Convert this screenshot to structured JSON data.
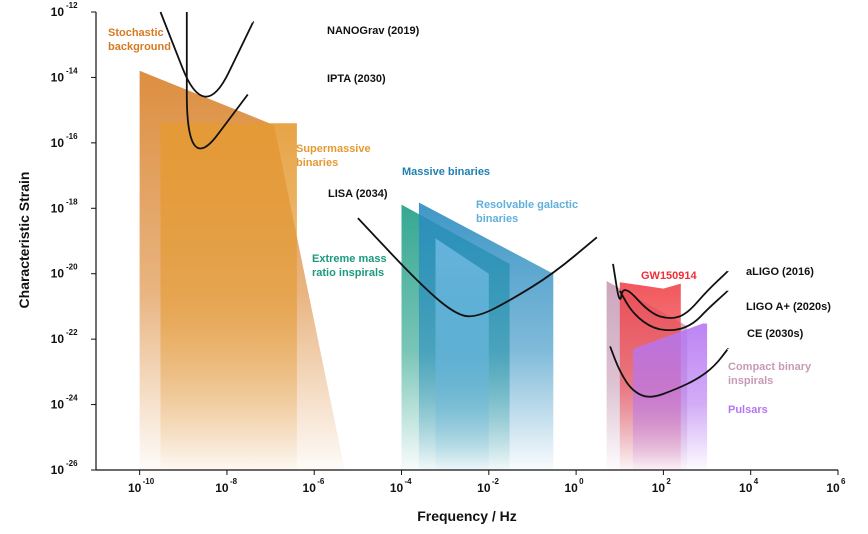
{
  "chart_data": {
    "type": "area",
    "title": "",
    "xlabel": "Frequency / Hz",
    "ylabel": "Characteristic Strain",
    "x_scale": "log",
    "y_scale": "log",
    "xlim": [
      1e-11,
      1000000.0
    ],
    "ylim": [
      1e-26,
      1e-12
    ],
    "grid": false,
    "legend": "none",
    "x_ticks": [
      {
        "base": "10",
        "exp": "-10",
        "value": 1e-10
      },
      {
        "base": "10",
        "exp": "-8",
        "value": 1e-08
      },
      {
        "base": "10",
        "exp": "-6",
        "value": 1e-06
      },
      {
        "base": "10",
        "exp": "-4",
        "value": 0.0001
      },
      {
        "base": "10",
        "exp": "-2",
        "value": 0.01
      },
      {
        "base": "10",
        "exp": "0",
        "value": 1
      },
      {
        "base": "10",
        "exp": "2",
        "value": 100
      },
      {
        "base": "10",
        "exp": "4",
        "value": 10000.0
      },
      {
        "base": "10",
        "exp": "6",
        "value": 1000000.0
      }
    ],
    "y_ticks": [
      {
        "base": "10",
        "exp": "-12",
        "value": 1e-12
      },
      {
        "base": "10",
        "exp": "-14",
        "value": 1e-14
      },
      {
        "base": "10",
        "exp": "-16",
        "value": 1e-16
      },
      {
        "base": "10",
        "exp": "-18",
        "value": 1e-18
      },
      {
        "base": "10",
        "exp": "-20",
        "value": 1e-20
      },
      {
        "base": "10",
        "exp": "-22",
        "value": 1e-22
      },
      {
        "base": "10",
        "exp": "-24",
        "value": 1e-24
      },
      {
        "base": "10",
        "exp": "-26",
        "value": 1e-26
      }
    ],
    "source_regions": [
      {
        "key": "stochastic",
        "color": "#d9822b",
        "fade": true,
        "polygon": [
          [
            1e-10,
            1.6e-14
          ],
          [
            1.2e-07,
            3.5e-16
          ],
          [
            5e-06,
            1e-26
          ],
          [
            1e-10,
            1e-26
          ]
        ]
      },
      {
        "key": "smbh",
        "color": "#e49a33",
        "fade": true,
        "polygon": [
          [
            3e-10,
            4e-16
          ],
          [
            4e-07,
            4e-16
          ],
          [
            4e-07,
            1e-26
          ],
          [
            3e-10,
            1e-26
          ]
        ]
      },
      {
        "key": "emri",
        "color": "#1f9e86",
        "fade": true,
        "polygon": [
          [
            0.0001,
            1.3e-18
          ],
          [
            0.03,
            2e-20
          ],
          [
            0.03,
            1e-26
          ],
          [
            0.0001,
            1e-26
          ]
        ]
      },
      {
        "key": "massive",
        "color": "#2a8cc0",
        "fade": true,
        "polygon": [
          [
            0.00025,
            1.5e-18
          ],
          [
            0.3,
            1e-20
          ],
          [
            0.3,
            1e-26
          ],
          [
            0.00025,
            1e-26
          ]
        ]
      },
      {
        "key": "resolvable",
        "color": "#6bb7e0",
        "fade": true,
        "polygon": [
          [
            0.0006,
            1.2e-19
          ],
          [
            0.01,
            1e-20
          ],
          [
            0.01,
            1e-26
          ],
          [
            0.0006,
            1e-26
          ]
        ]
      },
      {
        "key": "compact",
        "color": "#c79bb5",
        "fade": true,
        "polygon": [
          [
            5,
            6e-21
          ],
          [
            350,
            2.5e-22
          ],
          [
            350,
            1e-26
          ],
          [
            5,
            1e-26
          ]
        ]
      },
      {
        "key": "gw150914",
        "color": "#f0454a",
        "fade": true,
        "polygon": [
          [
            10,
            5.5e-21
          ],
          [
            100,
            3.5e-21
          ],
          [
            250,
            5e-21
          ],
          [
            250,
            1e-26
          ],
          [
            10,
            1e-26
          ]
        ]
      },
      {
        "key": "pulsars",
        "color": "#b576f2",
        "fade": true,
        "polygon": [
          [
            20,
            5e-23
          ],
          [
            800,
            3e-22
          ],
          [
            1000,
            3e-22
          ],
          [
            1000,
            1e-26
          ],
          [
            20,
            1e-26
          ]
        ]
      }
    ],
    "sensitivity_curves": [
      {
        "key": "nanograv",
        "points": [
          [
            3e-10,
            1e-12
          ],
          [
            3e-09,
            4e-16
          ],
          [
            4e-08,
            5e-13
          ]
        ]
      },
      {
        "key": "ipta",
        "points": [
          [
            1.2e-09,
            1e-12
          ],
          [
            1.2e-09,
            1e-17
          ],
          [
            3e-08,
            3e-15
          ]
        ]
      },
      {
        "key": "lisa",
        "points": [
          [
            1e-05,
            5e-19
          ],
          [
            0.0003,
            4e-21
          ],
          [
            0.002,
            5e-22
          ],
          [
            0.006,
            5e-22
          ],
          [
            0.03,
            1.5e-21
          ],
          [
            0.3,
            1e-20
          ],
          [
            3,
            1.3e-19
          ]
        ]
      },
      {
        "key": "aligo",
        "points": [
          [
            7,
            2e-20
          ],
          [
            10,
            1e-21
          ],
          [
            12,
            5e-21
          ],
          [
            50,
            6e-22
          ],
          [
            150,
            4e-22
          ],
          [
            350,
            6e-22
          ],
          [
            1000,
            3e-21
          ],
          [
            3000,
            1.2e-20
          ]
        ]
      },
      {
        "key": "ligoplus",
        "points": [
          [
            10,
            3e-21
          ],
          [
            20,
            6e-22
          ],
          [
            60,
            2e-22
          ],
          [
            200,
            1.8e-22
          ],
          [
            500,
            3e-22
          ],
          [
            1000,
            8e-22
          ],
          [
            3000,
            3e-21
          ]
        ]
      },
      {
        "key": "ce",
        "points": [
          [
            6,
            6e-23
          ],
          [
            10,
            1e-23
          ],
          [
            20,
            2.5e-24
          ],
          [
            50,
            1.5e-24
          ],
          [
            200,
            3e-24
          ],
          [
            600,
            6e-24
          ],
          [
            1500,
            1.5e-23
          ],
          [
            3000,
            5e-23
          ]
        ]
      }
    ],
    "annotations": [
      {
        "key": "stochastic",
        "lines": [
          "Stochastic",
          "background"
        ],
        "color": "#d67a23"
      },
      {
        "key": "smbh",
        "lines": [
          "Supermassive",
          "binaries"
        ],
        "color": "#e49a33"
      },
      {
        "key": "massive",
        "lines": [
          "Massive binaries"
        ],
        "color": "#1f7fb4"
      },
      {
        "key": "resolvable",
        "lines": [
          "Resolvable galactic",
          "binaries"
        ],
        "color": "#5fb0dc"
      },
      {
        "key": "emri",
        "lines": [
          "Extreme mass",
          "ratio inspirals"
        ],
        "color": "#1b9a7e"
      },
      {
        "key": "gw150914",
        "lines": [
          "GW150914"
        ],
        "color": "#ee2d35"
      },
      {
        "key": "compact",
        "lines": [
          "Compact binary",
          "inspirals"
        ],
        "color": "#c79bb5"
      },
      {
        "key": "pulsars",
        "lines": [
          "Pulsars"
        ],
        "color": "#b576f2"
      },
      {
        "key": "nanograv",
        "lines": [
          "NANOGrav (2019)"
        ],
        "color": "#111111"
      },
      {
        "key": "ipta",
        "lines": [
          "IPTA (2030)"
        ],
        "color": "#111111"
      },
      {
        "key": "lisa",
        "lines": [
          "LISA (2034)"
        ],
        "color": "#111111"
      },
      {
        "key": "aligo",
        "lines": [
          "aLIGO (2016)"
        ],
        "color": "#111111"
      },
      {
        "key": "ligoplus",
        "lines": [
          "LIGO A+ (2020s)"
        ],
        "color": "#111111"
      },
      {
        "key": "ce",
        "lines": [
          "CE (2030s)"
        ],
        "color": "#111111"
      }
    ]
  }
}
